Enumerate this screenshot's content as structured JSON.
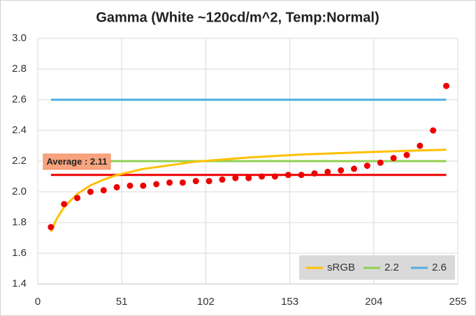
{
  "chart_data": {
    "type": "line",
    "title": "Gamma (White ~120cd/m^2, Temp:Normal)",
    "xlim": [
      0,
      255
    ],
    "xticks": [
      0,
      51,
      102,
      153,
      204,
      255
    ],
    "ylim": [
      1.4,
      3.0
    ],
    "yticks": [
      {
        "value": 1.4,
        "label": "1.4"
      },
      {
        "value": 1.6,
        "label": "1.6"
      },
      {
        "value": 1.8,
        "label": "1.8"
      },
      {
        "value": 2.0,
        "label": "2.0"
      },
      {
        "value": 2.2,
        "label": "2.2"
      },
      {
        "value": 2.4,
        "label": "2.4"
      },
      {
        "value": 2.6,
        "label": "2.6"
      },
      {
        "value": 2.8,
        "label": "2.8"
      },
      {
        "value": 3.0,
        "label": "3.0"
      }
    ],
    "grid": true,
    "legend": "bottom-right",
    "series": [
      {
        "name": "sRGB",
        "color": "#ffc000",
        "x": [
          8,
          10,
          12,
          16,
          24,
          32,
          40,
          48,
          64,
          96,
          128,
          160,
          192,
          224,
          248
        ],
        "values": [
          1.739,
          1.79,
          1.834,
          1.9,
          1.987,
          2.042,
          2.08,
          2.109,
          2.149,
          2.197,
          2.224,
          2.243,
          2.256,
          2.267,
          2.274
        ]
      },
      {
        "name": "2.2",
        "color": "#92d050",
        "x": [
          8,
          248
        ],
        "values": [
          2.2,
          2.2
        ]
      },
      {
        "name": "2.6",
        "color": "#4eaee0",
        "x": [
          8,
          248
        ],
        "values": [
          2.6,
          2.6
        ]
      }
    ],
    "average": {
      "text": "Average : 2.11",
      "value": 2.11,
      "color": "#ee0000",
      "x": [
        8,
        248
      ]
    },
    "points": {
      "color": "#ee0000",
      "x": [
        8,
        16,
        24,
        32,
        40,
        48,
        56,
        64,
        72,
        80,
        88,
        96,
        104,
        112,
        120,
        128,
        136,
        144,
        152,
        160,
        168,
        176,
        184,
        192,
        200,
        208,
        216,
        224,
        232,
        240,
        248
      ],
      "values": [
        1.77,
        1.92,
        1.96,
        2.0,
        2.01,
        2.03,
        2.04,
        2.04,
        2.05,
        2.06,
        2.06,
        2.07,
        2.07,
        2.08,
        2.09,
        2.09,
        2.1,
        2.1,
        2.11,
        2.11,
        2.12,
        2.13,
        2.14,
        2.15,
        2.17,
        2.19,
        2.22,
        2.24,
        2.3,
        2.4,
        2.69
      ]
    }
  }
}
